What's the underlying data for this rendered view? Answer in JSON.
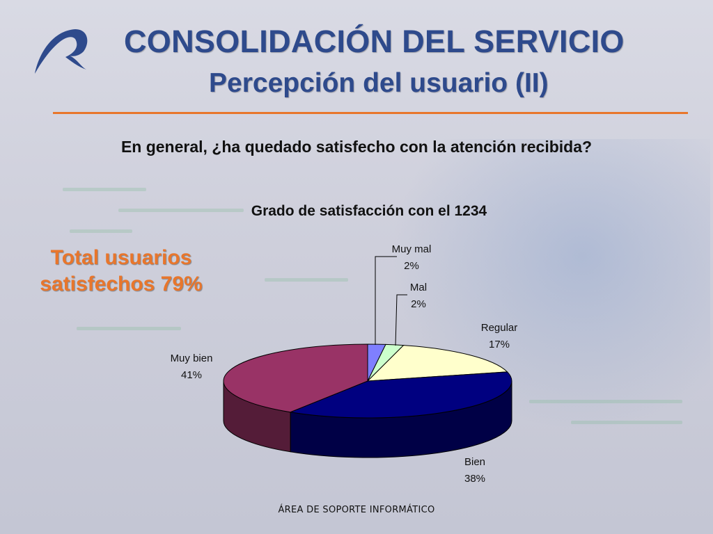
{
  "slide": {
    "title": "CONSOLIDACIÓN DEL SERVICIO",
    "subtitle": "Percepción del usuario (II)",
    "question": "En general, ¿ha quedado satisfecho con la atención recibida?",
    "total_line1": "Total usuarios",
    "total_line2": "satisfechos 79%",
    "footer": "ÁREA DE SOPORTE INFORMÁTICO"
  },
  "colors": {
    "title": "#2e4a8c",
    "accent": "#e8762c"
  },
  "chart_data": {
    "type": "pie",
    "title": "Grado de satisfacción con el 1234",
    "slices": [
      {
        "label": "Muy mal",
        "value": 2,
        "value_label": "2%",
        "color": "#7f7fff"
      },
      {
        "label": "Mal",
        "value": 2,
        "value_label": "2%",
        "color": "#ccffcc"
      },
      {
        "label": "Regular",
        "value": 17,
        "value_label": "17%",
        "color": "#ffffcc"
      },
      {
        "label": "Bien",
        "value": 38,
        "value_label": "38%",
        "color": "#000080"
      },
      {
        "label": "Muy bien",
        "value": 41,
        "value_label": "41%",
        "color": "#993366"
      }
    ],
    "legend": "none",
    "style": "3d"
  }
}
